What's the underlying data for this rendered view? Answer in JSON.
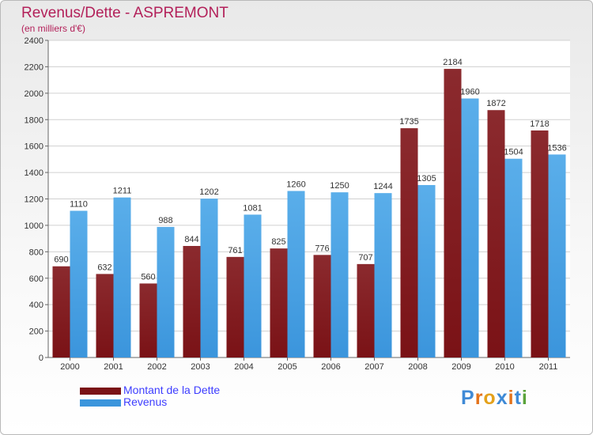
{
  "header": {
    "title": "Revenus/Dette - ASPREMONT",
    "subtitle": "(en milliers d'€)"
  },
  "colors": {
    "dette": "#7a1216",
    "revenus": "#3b95dc",
    "title": "#b3215a",
    "legend_text": "#3d3dff"
  },
  "logo": {
    "text": "Proxiti",
    "letter_colors": [
      "#3f8ad6",
      "#e4731b",
      "#e4a11b",
      "#3f8ad6",
      "#e4731b",
      "#3f8ad6",
      "#5aa33b"
    ]
  },
  "chart_data": {
    "type": "bar",
    "title": "Revenus/Dette - ASPREMONT",
    "subtitle": "(en milliers d'€)",
    "categories": [
      "2000",
      "2001",
      "2002",
      "2003",
      "2004",
      "2005",
      "2006",
      "2007",
      "2008",
      "2009",
      "2010",
      "2011"
    ],
    "series": [
      {
        "name": "Montant de la Dette",
        "values": [
          690,
          632,
          560,
          844,
          761,
          825,
          776,
          707,
          1735,
          2184,
          1872,
          1718
        ]
      },
      {
        "name": "Revenus",
        "values": [
          1110,
          1211,
          988,
          1202,
          1081,
          1260,
          1250,
          1244,
          1305,
          1960,
          1504,
          1536
        ]
      }
    ],
    "ylim": [
      0,
      2400
    ],
    "yticks": [
      0,
      200,
      400,
      600,
      800,
      1000,
      1200,
      1400,
      1600,
      1800,
      2000,
      2200,
      2400
    ],
    "grid": true,
    "legend_position": "bottom-left"
  }
}
